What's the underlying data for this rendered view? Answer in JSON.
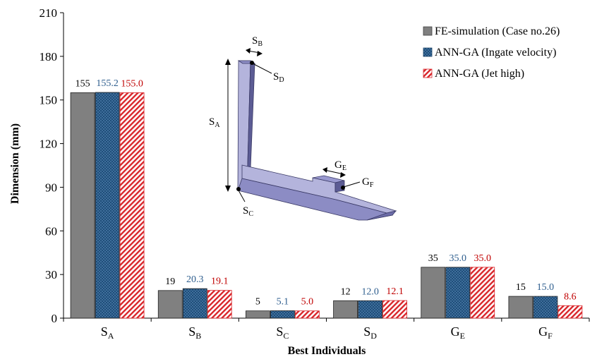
{
  "chart_data": {
    "type": "bar",
    "categories": [
      {
        "base": "S",
        "sub": "A"
      },
      {
        "base": "S",
        "sub": "B"
      },
      {
        "base": "S",
        "sub": "C"
      },
      {
        "base": "S",
        "sub": "D"
      },
      {
        "base": "G",
        "sub": "E"
      },
      {
        "base": "G",
        "sub": "F"
      }
    ],
    "series": [
      {
        "name": "FE-simulation (Case no.26)",
        "values": [
          155,
          19,
          5,
          12,
          35,
          15
        ],
        "labels": [
          "155",
          "19",
          "5",
          "12",
          "35",
          "15"
        ],
        "color": "#808080",
        "label_color": "#000000",
        "pattern": "solid"
      },
      {
        "name": "ANN-GA (Ingate velocity)",
        "values": [
          155.2,
          20.3,
          5.1,
          12.0,
          35.0,
          15.0
        ],
        "labels": [
          "155.2",
          "20.3",
          "5.1",
          "12.0",
          "35.0",
          "15.0"
        ],
        "color": "#1f4e79",
        "label_color": "#2e5e8e",
        "pattern": "dots"
      },
      {
        "name": "ANN-GA (Jet high)",
        "values": [
          155.0,
          19.1,
          5.0,
          12.1,
          35.0,
          8.6
        ],
        "labels": [
          "155.0",
          "19.1",
          "5.0",
          "12.1",
          "35.0",
          "8.6"
        ],
        "color": "#d9262b",
        "label_color": "#c00000",
        "pattern": "hatch"
      }
    ],
    "xlabel": "Best Individuals",
    "ylabel": "Dimension (mm)",
    "ylim": [
      0,
      210
    ],
    "yticks": [
      0,
      30,
      60,
      90,
      120,
      150,
      180,
      210
    ],
    "grid": false,
    "legend_position": "top-right"
  },
  "inset": {
    "labels": [
      {
        "base": "S",
        "sub": "B"
      },
      {
        "base": "S",
        "sub": "D"
      },
      {
        "base": "S",
        "sub": "A"
      },
      {
        "base": "G",
        "sub": "E"
      },
      {
        "base": "G",
        "sub": "F"
      },
      {
        "base": "S",
        "sub": "C"
      }
    ],
    "colors": {
      "light": "#b4b4dc",
      "mid": "#8c8cc4",
      "dark": "#5c5c94",
      "edge": "#3a3a66"
    }
  }
}
